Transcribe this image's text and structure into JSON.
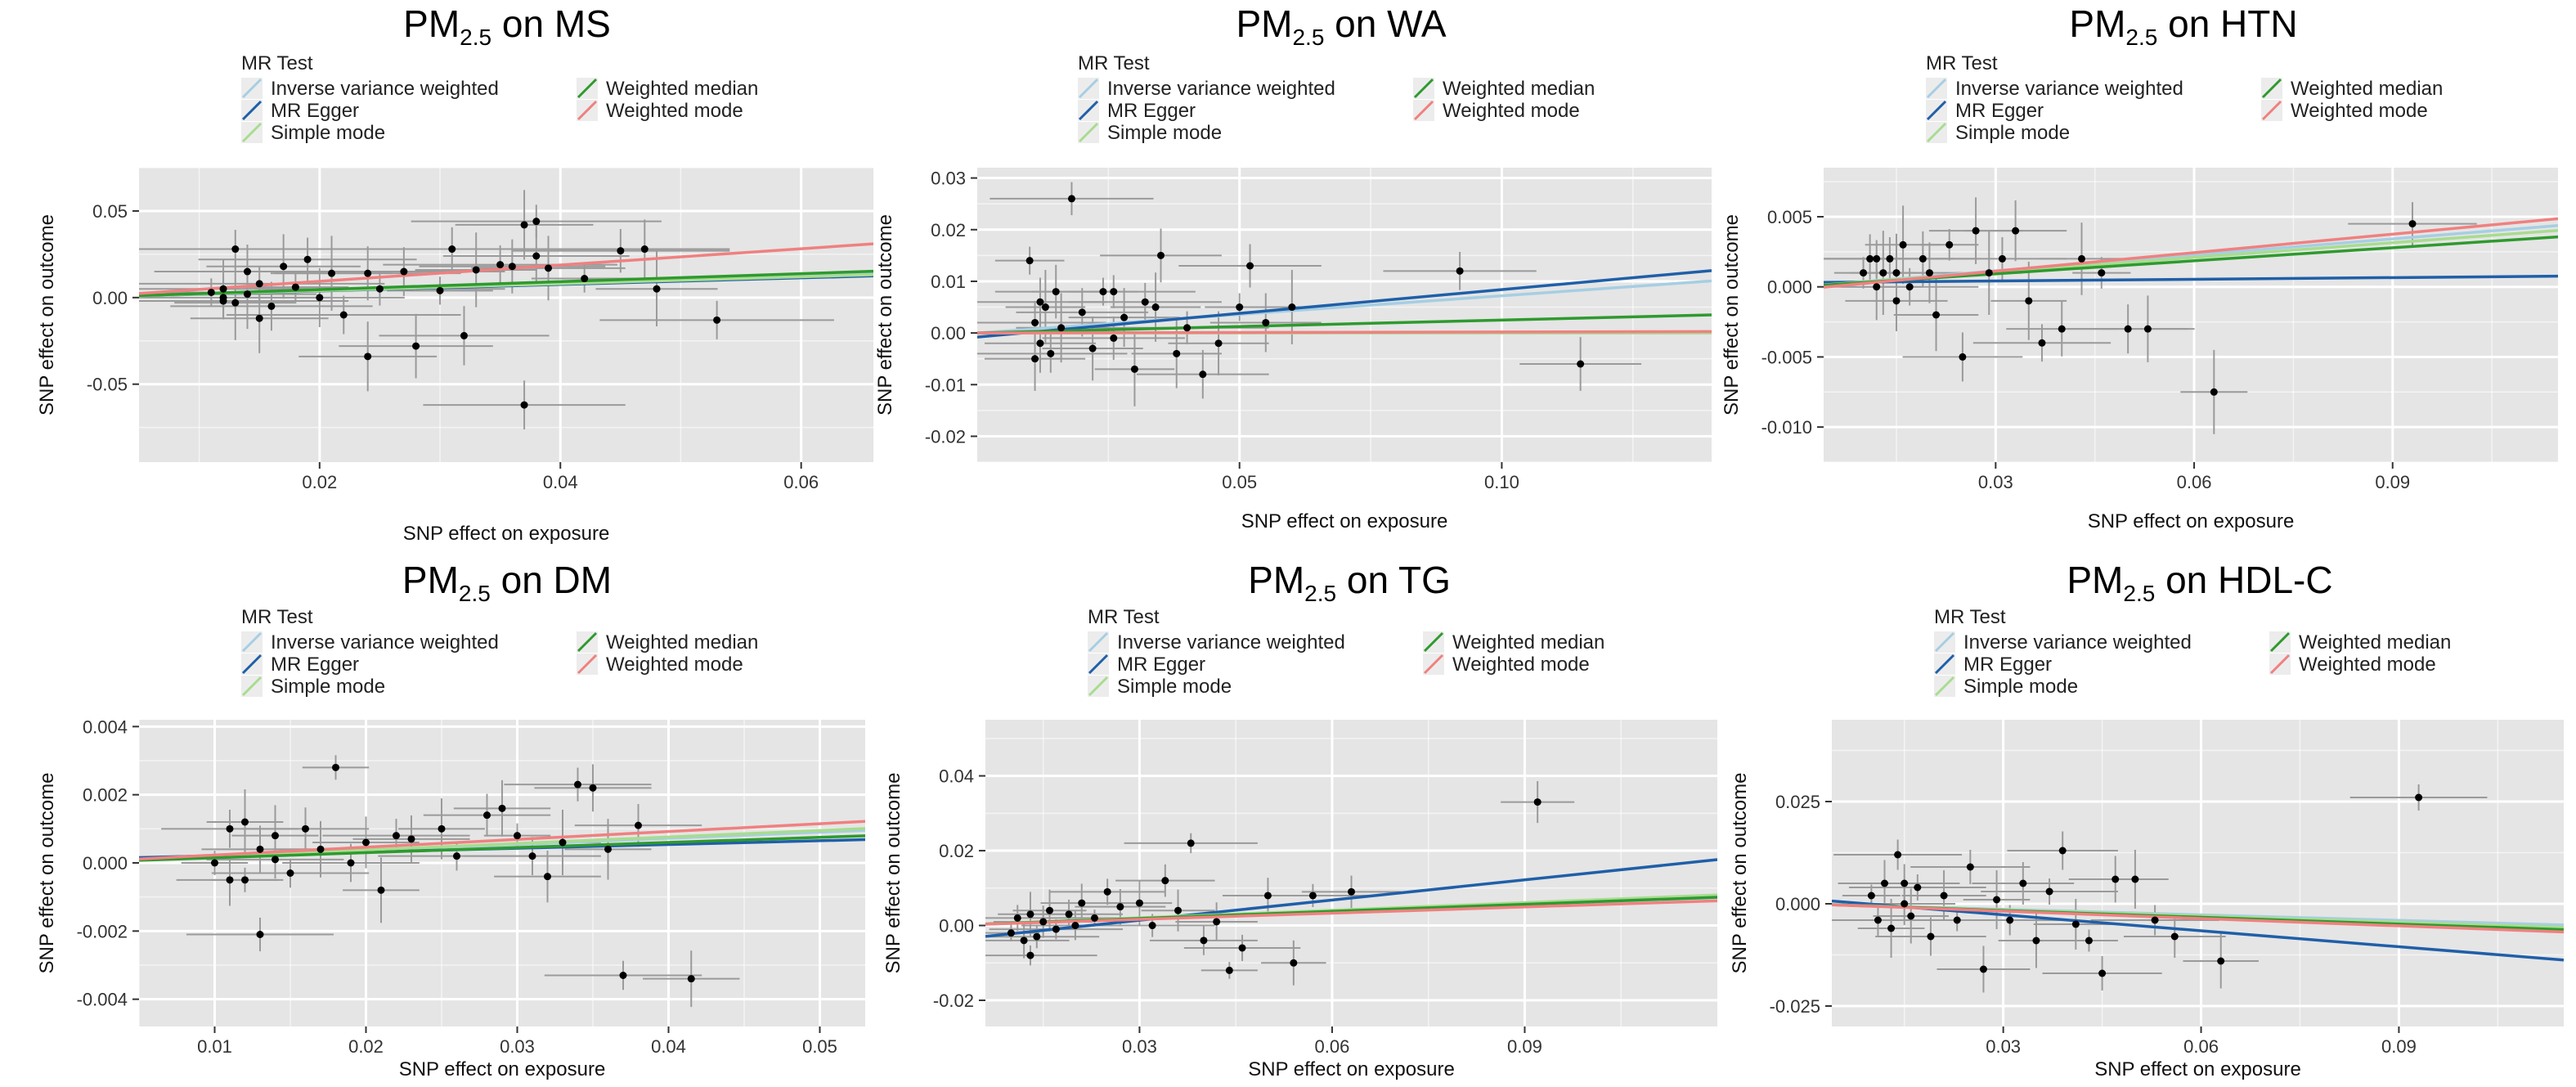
{
  "legend": {
    "title": "MR Test",
    "methods": [
      {
        "name": "Inverse variance weighted",
        "color": "#a6cee3"
      },
      {
        "name": "MR Egger",
        "color": "#1f5fa8"
      },
      {
        "name": "Simple mode",
        "color": "#a8dc8f"
      },
      {
        "name": "Weighted median",
        "color": "#2e9a2e"
      },
      {
        "name": "Weighted mode",
        "color": "#f08080"
      }
    ]
  },
  "colors": {
    "panel_bg": "#e5e5e5",
    "grid": "#ffffff",
    "point": "#000000",
    "errorbar": "#9a9a9a"
  },
  "chart_data": [
    {
      "type": "scatter",
      "title_prefix": "PM",
      "title_subscript": "2.5",
      "title_suffix": " on MS",
      "xlabel": "SNP effect on  exposure",
      "ylabel": "SNP effect on outcome",
      "xlim": [
        0.005,
        0.066
      ],
      "ylim": [
        -0.095,
        0.075
      ],
      "xticks": [
        0.02,
        0.04,
        0.06
      ],
      "xticklabels": [
        "0.02",
        "0.04",
        "0.06"
      ],
      "yticks": [
        -0.05,
        0.0,
        0.05
      ],
      "yticklabels": [
        "-0.05",
        "0.00",
        "0.05"
      ],
      "lines": [
        {
          "method": "Inverse variance weighted",
          "intercept": 0,
          "slope": 0.21
        },
        {
          "method": "MR Egger",
          "intercept": 0.0,
          "slope": 0.19
        },
        {
          "method": "Simple mode",
          "intercept": 0,
          "slope": 0.2
        },
        {
          "method": "Weighted median",
          "intercept": 0,
          "slope": 0.23
        },
        {
          "method": "Weighted mode",
          "intercept": 0,
          "slope": 0.47
        }
      ],
      "points": [
        [
          0.011,
          0.003
        ],
        [
          0.012,
          0.0
        ],
        [
          0.012,
          0.005
        ],
        [
          0.013,
          -0.003
        ],
        [
          0.013,
          0.028
        ],
        [
          0.014,
          0.015
        ],
        [
          0.014,
          0.002
        ],
        [
          0.015,
          0.008
        ],
        [
          0.016,
          -0.005
        ],
        [
          0.017,
          0.018
        ],
        [
          0.018,
          0.006
        ],
        [
          0.019,
          0.022
        ],
        [
          0.02,
          0.0
        ],
        [
          0.021,
          0.014
        ],
        [
          0.022,
          -0.01
        ],
        [
          0.024,
          0.014
        ],
        [
          0.024,
          -0.034
        ],
        [
          0.025,
          0.005
        ],
        [
          0.027,
          0.015
        ],
        [
          0.028,
          -0.028
        ],
        [
          0.03,
          0.004
        ],
        [
          0.031,
          0.028
        ],
        [
          0.032,
          -0.022
        ],
        [
          0.033,
          0.016
        ],
        [
          0.035,
          0.019
        ],
        [
          0.036,
          0.018
        ],
        [
          0.037,
          0.042
        ],
        [
          0.038,
          0.044
        ],
        [
          0.037,
          -0.062
        ],
        [
          0.039,
          0.017
        ],
        [
          0.042,
          0.011
        ],
        [
          0.045,
          0.027
        ],
        [
          0.047,
          0.028
        ],
        [
          0.048,
          0.005
        ],
        [
          0.053,
          -0.013
        ],
        [
          0.038,
          0.024
        ],
        [
          0.015,
          -0.012
        ],
        [
          0.012,
          -0.002
        ]
      ],
      "point_xerr": 0.008,
      "point_yerr": 0.018
    },
    {
      "type": "scatter",
      "title_prefix": "PM",
      "title_subscript": "2.5",
      "title_suffix": " on WA",
      "xlabel": "SNP effect on  exposure",
      "ylabel": "SNP effect on outcome",
      "xlim": [
        0.0,
        0.14
      ],
      "ylim": [
        -0.025,
        0.032
      ],
      "xticks": [
        0.05,
        0.1
      ],
      "xticklabels": [
        "0.05",
        "0.10"
      ],
      "yticks": [
        -0.02,
        -0.01,
        0.0,
        0.01,
        0.02,
        0.03
      ],
      "yticklabels": [
        "-0.02",
        "-0.01",
        "0.00",
        "0.01",
        "0.02",
        "0.03"
      ],
      "lines": [
        {
          "method": "Inverse variance weighted",
          "intercept": 0,
          "slope": 0.072
        },
        {
          "method": "MR Egger",
          "intercept": -0.0008,
          "slope": 0.092
        },
        {
          "method": "Simple mode",
          "intercept": 0,
          "slope": 0.0
        },
        {
          "method": "Weighted median",
          "intercept": 0,
          "slope": 0.025
        },
        {
          "method": "Weighted mode",
          "intercept": 0,
          "slope": 0.002
        }
      ],
      "points": [
        [
          0.01,
          0.014
        ],
        [
          0.011,
          0.002
        ],
        [
          0.012,
          -0.002
        ],
        [
          0.013,
          0.005
        ],
        [
          0.014,
          -0.004
        ],
        [
          0.015,
          0.008
        ],
        [
          0.016,
          0.001
        ],
        [
          0.018,
          0.026
        ],
        [
          0.02,
          0.004
        ],
        [
          0.022,
          -0.003
        ],
        [
          0.024,
          0.008
        ],
        [
          0.026,
          -0.001
        ],
        [
          0.028,
          0.003
        ],
        [
          0.03,
          -0.007
        ],
        [
          0.032,
          0.006
        ],
        [
          0.035,
          0.015
        ],
        [
          0.038,
          -0.004
        ],
        [
          0.04,
          0.001
        ],
        [
          0.043,
          -0.008
        ],
        [
          0.046,
          -0.002
        ],
        [
          0.05,
          0.005
        ],
        [
          0.052,
          0.013
        ],
        [
          0.055,
          0.002
        ],
        [
          0.06,
          0.005
        ],
        [
          0.092,
          0.012
        ],
        [
          0.115,
          -0.006
        ],
        [
          0.034,
          0.005
        ],
        [
          0.026,
          0.008
        ],
        [
          0.012,
          0.006
        ],
        [
          0.011,
          -0.005
        ]
      ],
      "point_xerr": 0.012,
      "point_yerr": 0.006
    },
    {
      "type": "scatter",
      "title_prefix": "PM",
      "title_subscript": "2.5",
      "title_suffix": " on HTN",
      "xlabel": "SNP effect on  exposure",
      "ylabel": "SNP effect on outcome",
      "xlim": [
        0.004,
        0.115
      ],
      "ylim": [
        -0.0125,
        0.0085
      ],
      "xticks": [
        0.03,
        0.06,
        0.09
      ],
      "xticklabels": [
        "0.03",
        "0.06",
        "0.09"
      ],
      "yticks": [
        -0.01,
        -0.005,
        0.0,
        0.005
      ],
      "yticklabels": [
        "-0.010",
        "-0.005",
        "0.000",
        "0.005"
      ],
      "lines": [
        {
          "method": "Inverse variance weighted",
          "intercept": 0,
          "slope": 0.038
        },
        {
          "method": "MR Egger",
          "intercept": 0.0003,
          "slope": 0.004
        },
        {
          "method": "Simple mode",
          "intercept": 0,
          "slope": 0.035
        },
        {
          "method": "Weighted median",
          "intercept": 0,
          "slope": 0.031
        },
        {
          "method": "Weighted mode",
          "intercept": -0.0002,
          "slope": 0.044
        }
      ],
      "points": [
        [
          0.01,
          0.001
        ],
        [
          0.011,
          0.002
        ],
        [
          0.012,
          0.0
        ],
        [
          0.013,
          0.001
        ],
        [
          0.014,
          0.002
        ],
        [
          0.015,
          -0.001
        ],
        [
          0.016,
          0.003
        ],
        [
          0.017,
          0.0
        ],
        [
          0.019,
          0.002
        ],
        [
          0.021,
          -0.002
        ],
        [
          0.023,
          0.003
        ],
        [
          0.025,
          -0.005
        ],
        [
          0.027,
          0.004
        ],
        [
          0.029,
          0.001
        ],
        [
          0.031,
          0.002
        ],
        [
          0.033,
          0.004
        ],
        [
          0.035,
          -0.001
        ],
        [
          0.037,
          -0.004
        ],
        [
          0.04,
          -0.003
        ],
        [
          0.043,
          0.002
        ],
        [
          0.046,
          0.001
        ],
        [
          0.05,
          -0.003
        ],
        [
          0.053,
          -0.003
        ],
        [
          0.063,
          -0.0075
        ],
        [
          0.093,
          0.0045
        ],
        [
          0.02,
          0.001
        ],
        [
          0.015,
          0.001
        ],
        [
          0.012,
          0.002
        ]
      ],
      "point_xerr": 0.008,
      "point_yerr": 0.0025
    },
    {
      "type": "scatter",
      "title_prefix": "PM",
      "title_subscript": "2.5",
      "title_suffix": " on DM",
      "xlabel": "SNP effect on  exposure",
      "ylabel": "SNP effect on outcome",
      "xlim": [
        0.005,
        0.053
      ],
      "ylim": [
        -0.0048,
        0.0042
      ],
      "xticks": [
        0.01,
        0.02,
        0.03,
        0.04,
        0.05
      ],
      "xticklabels": [
        "0.01",
        "0.02",
        "0.03",
        "0.04",
        "0.05"
      ],
      "yticks": [
        -0.004,
        -0.002,
        0.0,
        0.002,
        0.004
      ],
      "yticklabels": [
        "-0.004",
        "-0.002",
        "0.000",
        "0.002",
        "0.004"
      ],
      "lines": [
        {
          "method": "Inverse variance weighted",
          "intercept": 0,
          "slope": 0.018
        },
        {
          "method": "MR Egger",
          "intercept": 0.0001,
          "slope": 0.011
        },
        {
          "method": "Simple mode",
          "intercept": 0,
          "slope": 0.019
        },
        {
          "method": "Weighted median",
          "intercept": 0,
          "slope": 0.015
        },
        {
          "method": "Weighted mode",
          "intercept": 0,
          "slope": 0.023
        }
      ],
      "points": [
        [
          0.01,
          0.0
        ],
        [
          0.011,
          0.001
        ],
        [
          0.011,
          -0.0005
        ],
        [
          0.012,
          0.0012
        ],
        [
          0.013,
          -0.0021
        ],
        [
          0.013,
          0.0004
        ],
        [
          0.014,
          0.0008
        ],
        [
          0.015,
          -0.0003
        ],
        [
          0.016,
          0.001
        ],
        [
          0.017,
          0.0004
        ],
        [
          0.018,
          0.0028
        ],
        [
          0.019,
          0.0
        ],
        [
          0.02,
          0.0006
        ],
        [
          0.021,
          -0.0008
        ],
        [
          0.022,
          0.0008
        ],
        [
          0.023,
          0.0007
        ],
        [
          0.025,
          0.001
        ],
        [
          0.026,
          0.0002
        ],
        [
          0.028,
          0.0014
        ],
        [
          0.029,
          0.0016
        ],
        [
          0.03,
          0.0008
        ],
        [
          0.031,
          0.0002
        ],
        [
          0.032,
          -0.0004
        ],
        [
          0.033,
          0.0006
        ],
        [
          0.034,
          0.0023
        ],
        [
          0.035,
          0.0022
        ],
        [
          0.036,
          0.0004
        ],
        [
          0.037,
          -0.0033
        ],
        [
          0.038,
          0.0011
        ],
        [
          0.0415,
          -0.0034
        ],
        [
          0.012,
          -0.0005
        ],
        [
          0.014,
          0.0001
        ]
      ],
      "point_xerr": 0.004,
      "point_yerr": 0.0008
    },
    {
      "type": "scatter",
      "title_prefix": "PM",
      "title_subscript": "2.5",
      "title_suffix": " on TG",
      "xlabel": "SNP effect on  exposure",
      "ylabel": "SNP effect on outcome",
      "xlim": [
        0.006,
        0.12
      ],
      "ylim": [
        -0.027,
        0.055
      ],
      "xticks": [
        0.03,
        0.06,
        0.09
      ],
      "xticklabels": [
        "0.03",
        "0.06",
        "0.09"
      ],
      "yticks": [
        -0.02,
        0.0,
        0.02,
        0.04
      ],
      "yticklabels": [
        "-0.02",
        "0.00",
        "0.02",
        "0.04"
      ],
      "lines": [
        {
          "method": "Inverse variance weighted",
          "intercept": 0,
          "slope": 0.062
        },
        {
          "method": "MR Egger",
          "intercept": -0.004,
          "slope": 0.18
        },
        {
          "method": "Simple mode",
          "intercept": 0,
          "slope": 0.068
        },
        {
          "method": "Weighted median",
          "intercept": 0,
          "slope": 0.063
        },
        {
          "method": "Weighted mode",
          "intercept": 0,
          "slope": 0.055
        }
      ],
      "points": [
        [
          0.01,
          -0.002
        ],
        [
          0.011,
          0.002
        ],
        [
          0.012,
          -0.004
        ],
        [
          0.013,
          0.003
        ],
        [
          0.014,
          -0.003
        ],
        [
          0.015,
          0.001
        ],
        [
          0.016,
          0.004
        ],
        [
          0.017,
          -0.001
        ],
        [
          0.019,
          0.003
        ],
        [
          0.021,
          0.006
        ],
        [
          0.023,
          0.002
        ],
        [
          0.025,
          0.009
        ],
        [
          0.027,
          0.005
        ],
        [
          0.03,
          0.006
        ],
        [
          0.032,
          0.0
        ],
        [
          0.034,
          0.012
        ],
        [
          0.036,
          0.004
        ],
        [
          0.038,
          0.022
        ],
        [
          0.04,
          -0.004
        ],
        [
          0.042,
          0.001
        ],
        [
          0.044,
          -0.012
        ],
        [
          0.046,
          -0.006
        ],
        [
          0.05,
          0.008
        ],
        [
          0.054,
          -0.01
        ],
        [
          0.057,
          0.008
        ],
        [
          0.063,
          0.009
        ],
        [
          0.092,
          0.033
        ],
        [
          0.013,
          -0.008
        ],
        [
          0.02,
          0.0
        ]
      ],
      "point_xerr": 0.008,
      "point_yerr": 0.005
    },
    {
      "type": "scatter",
      "title_prefix": "PM",
      "title_subscript": "2.5",
      "title_suffix": " on HDL-C",
      "xlabel": "SNP effect on  exposure",
      "ylabel": "SNP effect on outcome",
      "xlim": [
        0.004,
        0.115
      ],
      "ylim": [
        -0.03,
        0.045
      ],
      "xticks": [
        0.03,
        0.06,
        0.09
      ],
      "xticklabels": [
        "0.03",
        "0.06",
        "0.09"
      ],
      "yticks": [
        -0.025,
        0.0,
        0.025
      ],
      "yticklabels": [
        "-0.025",
        "0.000",
        "0.025"
      ],
      "lines": [
        {
          "method": "Inverse variance weighted",
          "intercept": 0,
          "slope": -0.045
        },
        {
          "method": "MR Egger",
          "intercept": 0.0012,
          "slope": -0.13
        },
        {
          "method": "Simple mode",
          "intercept": 0,
          "slope": -0.05
        },
        {
          "method": "Weighted median",
          "intercept": 0,
          "slope": -0.055
        },
        {
          "method": "Weighted mode",
          "intercept": 0,
          "slope": -0.06
        }
      ],
      "points": [
        [
          0.01,
          0.002
        ],
        [
          0.011,
          -0.004
        ],
        [
          0.012,
          0.005
        ],
        [
          0.013,
          -0.006
        ],
        [
          0.014,
          0.012
        ],
        [
          0.015,
          0.0
        ],
        [
          0.016,
          -0.003
        ],
        [
          0.017,
          0.004
        ],
        [
          0.019,
          -0.008
        ],
        [
          0.021,
          0.002
        ],
        [
          0.023,
          -0.004
        ],
        [
          0.025,
          0.009
        ],
        [
          0.027,
          -0.016
        ],
        [
          0.029,
          0.001
        ],
        [
          0.031,
          -0.004
        ],
        [
          0.033,
          0.005
        ],
        [
          0.035,
          -0.009
        ],
        [
          0.037,
          0.003
        ],
        [
          0.039,
          0.013
        ],
        [
          0.041,
          -0.005
        ],
        [
          0.043,
          -0.009
        ],
        [
          0.045,
          -0.017
        ],
        [
          0.047,
          0.006
        ],
        [
          0.05,
          0.006
        ],
        [
          0.053,
          -0.004
        ],
        [
          0.056,
          -0.008
        ],
        [
          0.063,
          -0.014
        ],
        [
          0.093,
          0.026
        ],
        [
          0.015,
          0.005
        ]
      ],
      "point_xerr": 0.008,
      "point_yerr": 0.006
    }
  ]
}
